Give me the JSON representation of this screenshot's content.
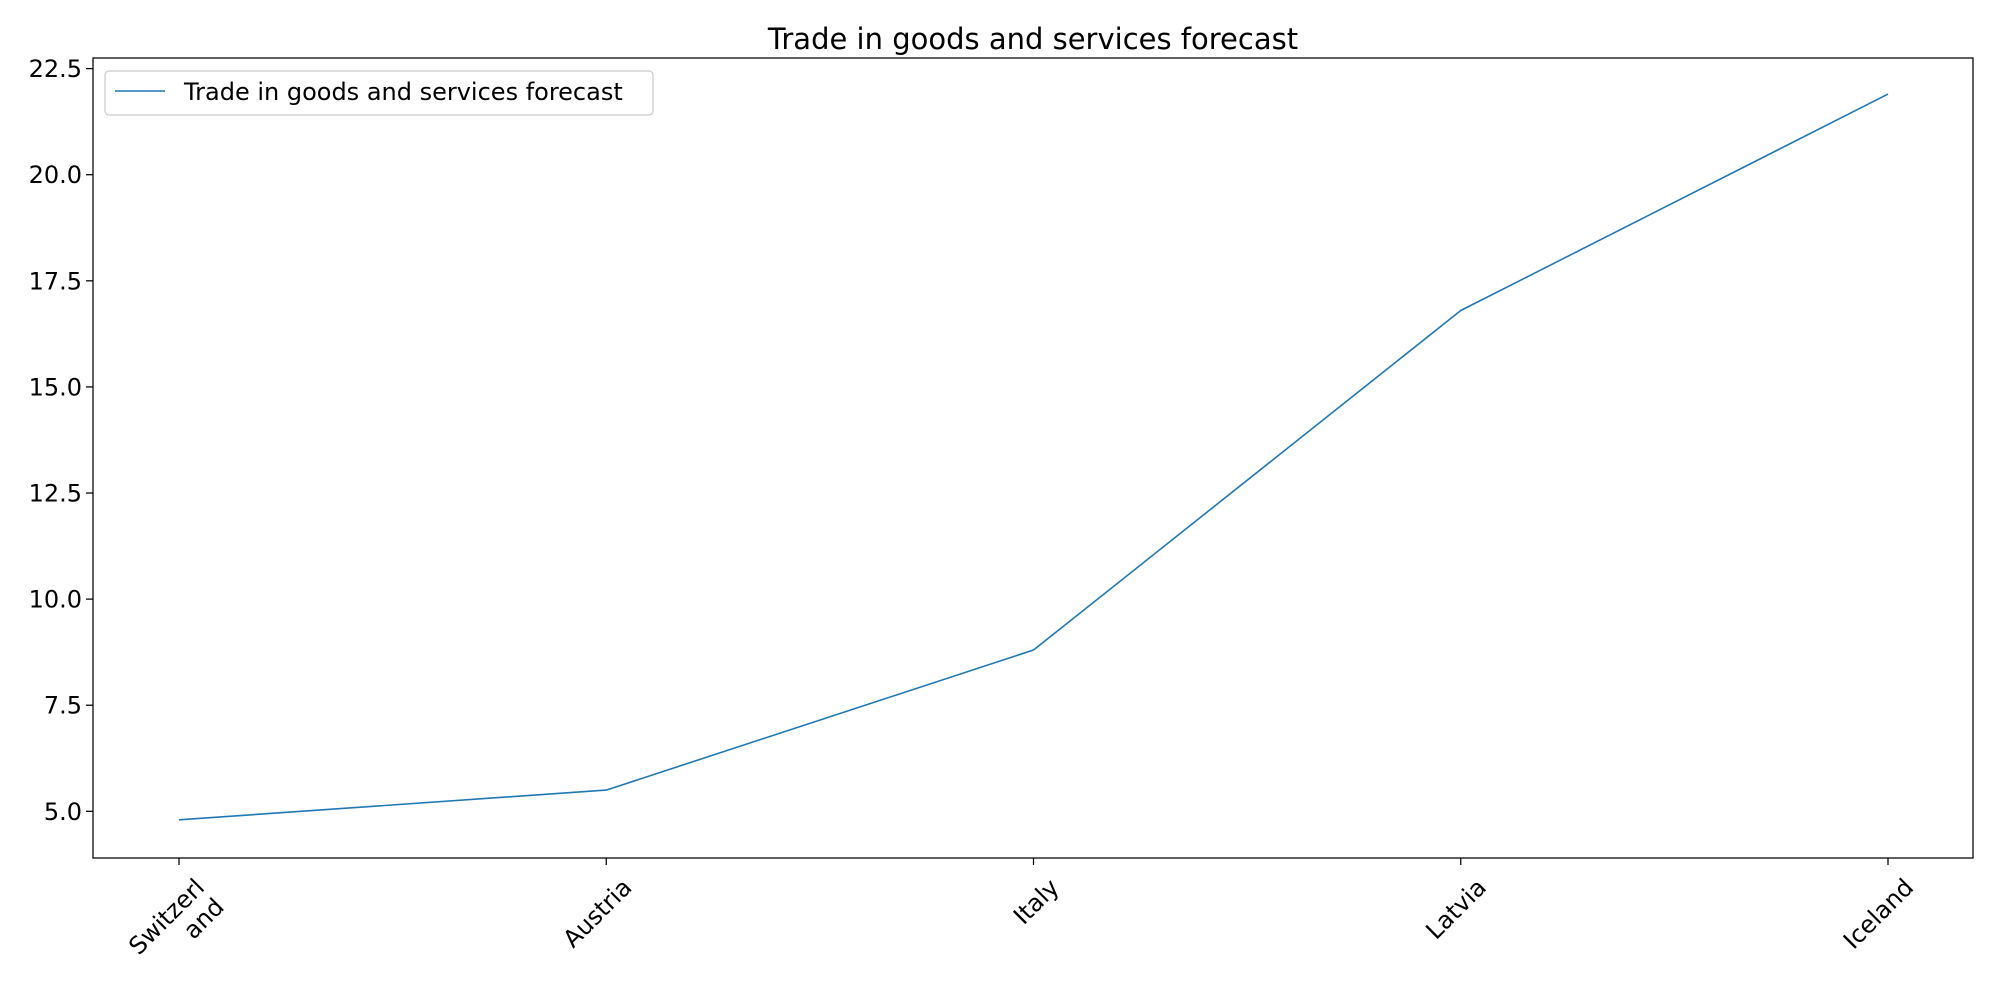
{
  "chart_data": {
    "type": "line",
    "title": "Trade in goods and services forecast",
    "xlabel": "",
    "ylabel": "",
    "categories": [
      "Switzerland",
      "Austria",
      "Italy",
      "Latvia",
      "Iceland"
    ],
    "category_labels": [
      [
        "Switzerl",
        "and"
      ],
      [
        "Austria"
      ],
      [
        "Italy"
      ],
      [
        "Latvia"
      ],
      [
        "Iceland"
      ]
    ],
    "series": [
      {
        "name": "Trade in goods and services forecast",
        "values": [
          4.8,
          5.5,
          8.8,
          16.8,
          21.9
        ],
        "color": "#1f77b4"
      }
    ],
    "ylim": [
      3.9,
      22.75
    ],
    "yticks": [
      5.0,
      7.5,
      10.0,
      12.5,
      15.0,
      17.5,
      20.0,
      22.5
    ],
    "ytick_labels": [
      "5.0",
      "7.5",
      "10.0",
      "12.5",
      "15.0",
      "17.5",
      "20.0",
      "22.5"
    ],
    "grid": false,
    "legend_position": "upper left"
  }
}
